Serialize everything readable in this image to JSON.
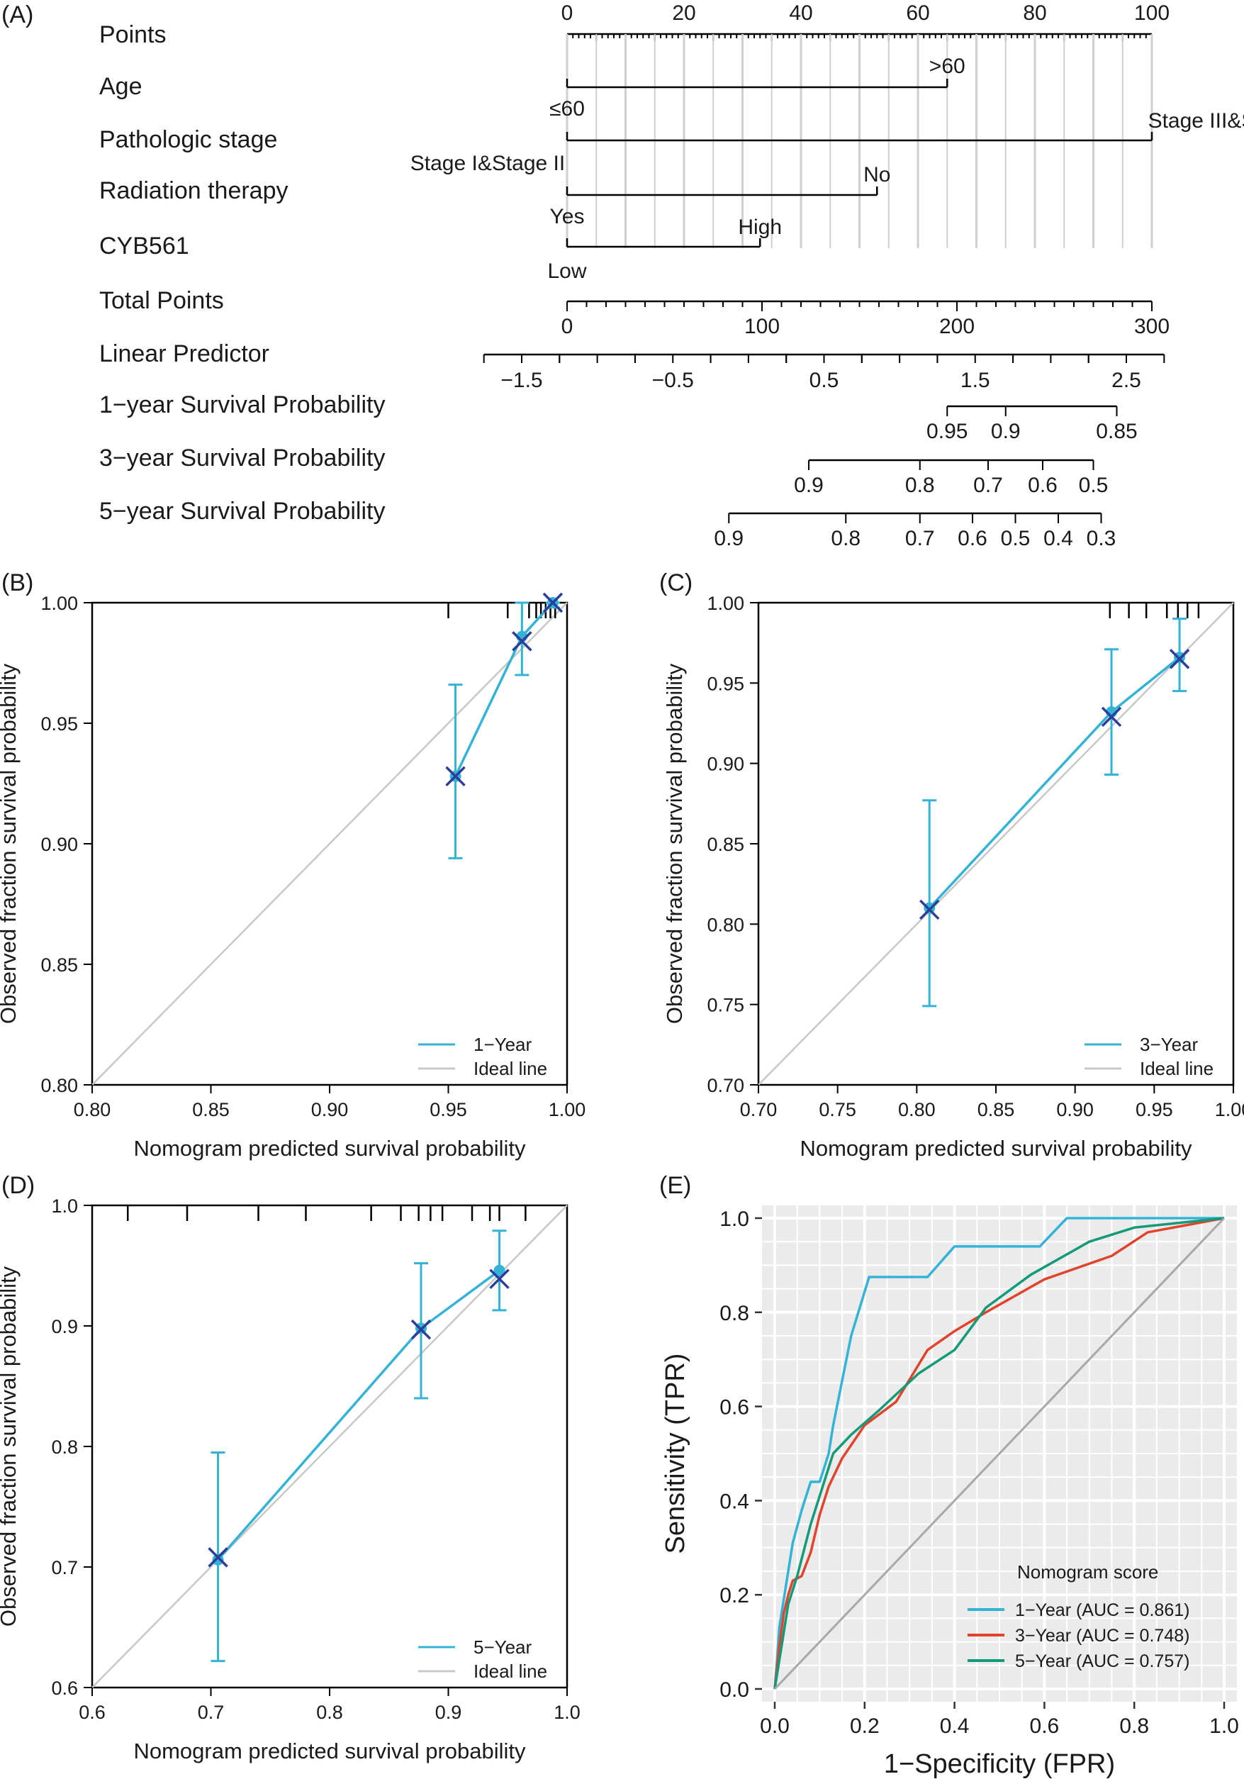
{
  "colors": {
    "one_year": "#33b3d6",
    "three_year": "#e0442c",
    "five_year": "#139a78",
    "ideal": "#c8c8c8",
    "diag_roc": "#a8a8a8",
    "cross": "#2c3e99",
    "panel_bg": "#ebebeb",
    "grid": "#ffffff"
  },
  "chart_data": [
    {
      "panel": "(A)",
      "type": "nomogram",
      "rows": [
        {
          "label": "Points",
          "kind": "scale",
          "ticks": [
            "0",
            "20",
            "40",
            "60",
            "80",
            "100"
          ]
        },
        {
          "label": "Age",
          "kind": "factor",
          "levels": [
            {
              "text": "≤60",
              "points": 0
            },
            {
              "text": ">60",
              "points": 65
            }
          ]
        },
        {
          "label": "Pathologic stage",
          "kind": "factor",
          "levels": [
            {
              "text": "Stage I&Stage II",
              "points": 0
            },
            {
              "text": "Stage III&Stage IV",
              "points": 100
            }
          ]
        },
        {
          "label": "Radiation therapy",
          "kind": "factor",
          "levels": [
            {
              "text": "Yes",
              "points": 0
            },
            {
              "text": "No",
              "points": 53
            }
          ]
        },
        {
          "label": "CYB561",
          "kind": "factor",
          "levels": [
            {
              "text": "Low",
              "points": 0
            },
            {
              "text": "High",
              "points": 33
            }
          ]
        },
        {
          "label": "Total Points",
          "kind": "scale",
          "ticks": [
            "0",
            "100",
            "200",
            "300"
          ],
          "range": [
            0,
            300
          ]
        },
        {
          "label": "Linear Predictor",
          "kind": "scale",
          "ticks": [
            "−1.5",
            "−0.5",
            "0.5",
            "1.5",
            "2.5"
          ],
          "range": [
            -1.75,
            2.75
          ]
        },
        {
          "label": "1−year Survival Probability",
          "kind": "prob",
          "ticks": [
            "0.95",
            "0.9",
            "0.85"
          ],
          "total_points": [
            195,
            225,
            282
          ]
        },
        {
          "label": "3−year Survival Probability",
          "kind": "prob",
          "ticks": [
            "0.9",
            "0.8",
            "0.7",
            "0.6",
            "0.5"
          ],
          "total_points": [
            124,
            181,
            216,
            244,
            270
          ]
        },
        {
          "label": "5−year Survival Probability",
          "kind": "prob",
          "ticks": [
            "0.9",
            "0.8",
            "0.7",
            "0.6",
            "0.5",
            "0.4",
            "0.3"
          ],
          "total_points": [
            83,
            143,
            181,
            208,
            230,
            252,
            274
          ]
        }
      ]
    },
    {
      "panel": "(B)",
      "type": "calibration",
      "xlabel": "Nomogram predicted survival probability",
      "ylabel": "Observed fraction survival probability",
      "xlim": [
        0.8,
        1.0
      ],
      "ylim": [
        0.8,
        1.0
      ],
      "xticks": [
        "0.80",
        "0.85",
        "0.90",
        "0.95",
        "1.00"
      ],
      "yticks": [
        "0.80",
        "0.85",
        "0.90",
        "0.95",
        "1.00"
      ],
      "series_name": "1−Year",
      "ideal_name": "Ideal line",
      "predicted": [
        0.953,
        0.981,
        0.994
      ],
      "observed": [
        0.928,
        0.986,
        1.0
      ],
      "lower": [
        0.894,
        0.97,
        0.998
      ],
      "upper": [
        0.966,
        1.0,
        1.0
      ],
      "corrected": [
        0.928,
        0.984,
        1.0
      ],
      "rug": [
        0.95,
        0.975,
        0.981,
        0.984,
        0.987,
        0.989,
        0.991,
        0.993,
        0.995
      ]
    },
    {
      "panel": "(C)",
      "type": "calibration",
      "xlabel": "Nomogram predicted survival probability",
      "ylabel": "Observed fraction survival probability",
      "xlim": [
        0.7,
        1.0
      ],
      "ylim": [
        0.7,
        1.0
      ],
      "xticks": [
        "0.70",
        "0.75",
        "0.80",
        "0.85",
        "0.90",
        "0.95",
        "1.00"
      ],
      "yticks": [
        "0.70",
        "0.75",
        "0.80",
        "0.85",
        "0.90",
        "0.95",
        "1.00"
      ],
      "series_name": "3−Year",
      "ideal_name": "Ideal line",
      "predicted": [
        0.808,
        0.923,
        0.966
      ],
      "observed": [
        0.81,
        0.932,
        0.966
      ],
      "lower": [
        0.749,
        0.893,
        0.945
      ],
      "upper": [
        0.877,
        0.971,
        0.99
      ],
      "corrected": [
        0.809,
        0.929,
        0.965
      ],
      "rug": [
        0.922,
        0.934,
        0.945,
        0.958,
        0.965,
        0.971,
        0.978
      ]
    },
    {
      "panel": "(D)",
      "type": "calibration",
      "xlabel": "Nomogram predicted survival probability",
      "ylabel": "Observed fraction survival probability",
      "xlim": [
        0.6,
        1.0
      ],
      "ylim": [
        0.6,
        1.0
      ],
      "xticks": [
        "0.6",
        "0.7",
        "0.8",
        "0.9",
        "1.0"
      ],
      "yticks": [
        "0.6",
        "0.7",
        "0.8",
        "0.9",
        "1.0"
      ],
      "series_name": "5−Year",
      "ideal_name": "Ideal line",
      "predicted": [
        0.706,
        0.877,
        0.943
      ],
      "observed": [
        0.706,
        0.898,
        0.946
      ],
      "lower": [
        0.622,
        0.84,
        0.913
      ],
      "upper": [
        0.795,
        0.952,
        0.979
      ],
      "corrected": [
        0.708,
        0.897,
        0.939
      ],
      "rug": [
        0.63,
        0.68,
        0.74,
        0.78,
        0.835,
        0.86,
        0.875,
        0.885,
        0.895,
        0.92,
        0.935,
        0.943,
        0.965
      ]
    },
    {
      "panel": "(E)",
      "type": "line",
      "xlabel": "1−Specificity (FPR)",
      "ylabel": "Sensitivity (TPR)",
      "xlim": [
        0,
        1
      ],
      "ylim": [
        0,
        1
      ],
      "xticks": [
        "0.0",
        "0.2",
        "0.4",
        "0.6",
        "0.8",
        "1.0"
      ],
      "yticks": [
        "0.0",
        "0.2",
        "0.4",
        "0.6",
        "0.8",
        "1.0"
      ],
      "legend_title": "Nomogram score",
      "legend_position": "bottom-right",
      "series": [
        {
          "name": "1−Year (AUC = 0.861)",
          "key": "one_year",
          "points": [
            [
              0,
              0
            ],
            [
              0.005,
              0.06
            ],
            [
              0.01,
              0.13
            ],
            [
              0.02,
              0.19
            ],
            [
              0.03,
              0.25
            ],
            [
              0.04,
              0.31
            ],
            [
              0.06,
              0.38
            ],
            [
              0.08,
              0.44
            ],
            [
              0.1,
              0.44
            ],
            [
              0.12,
              0.5
            ],
            [
              0.13,
              0.56
            ],
            [
              0.17,
              0.75
            ],
            [
              0.21,
              0.875
            ],
            [
              0.34,
              0.875
            ],
            [
              0.4,
              0.94
            ],
            [
              0.59,
              0.94
            ],
            [
              0.65,
              1.0
            ],
            [
              1,
              1
            ]
          ]
        },
        {
          "name": "3−Year (AUC = 0.748)",
          "key": "three_year",
          "points": [
            [
              0,
              0
            ],
            [
              0.01,
              0.09
            ],
            [
              0.02,
              0.16
            ],
            [
              0.03,
              0.2
            ],
            [
              0.04,
              0.23
            ],
            [
              0.06,
              0.24
            ],
            [
              0.08,
              0.29
            ],
            [
              0.1,
              0.37
            ],
            [
              0.12,
              0.43
            ],
            [
              0.15,
              0.49
            ],
            [
              0.2,
              0.56
            ],
            [
              0.27,
              0.61
            ],
            [
              0.34,
              0.72
            ],
            [
              0.4,
              0.76
            ],
            [
              0.47,
              0.8
            ],
            [
              0.6,
              0.87
            ],
            [
              0.75,
              0.92
            ],
            [
              0.83,
              0.97
            ],
            [
              1,
              1
            ]
          ]
        },
        {
          "name": "5−Year (AUC = 0.757)",
          "key": "five_year",
          "points": [
            [
              0,
              0
            ],
            [
              0.01,
              0.06
            ],
            [
              0.02,
              0.12
            ],
            [
              0.03,
              0.18
            ],
            [
              0.05,
              0.24
            ],
            [
              0.08,
              0.35
            ],
            [
              0.1,
              0.41
            ],
            [
              0.13,
              0.5
            ],
            [
              0.17,
              0.54
            ],
            [
              0.23,
              0.59
            ],
            [
              0.32,
              0.67
            ],
            [
              0.4,
              0.72
            ],
            [
              0.47,
              0.81
            ],
            [
              0.57,
              0.88
            ],
            [
              0.7,
              0.95
            ],
            [
              0.8,
              0.98
            ],
            [
              1,
              1
            ]
          ]
        },
        {
          "name": "",
          "key": "diag_roc",
          "points": [
            [
              0,
              0
            ],
            [
              1,
              1
            ]
          ]
        }
      ]
    }
  ]
}
